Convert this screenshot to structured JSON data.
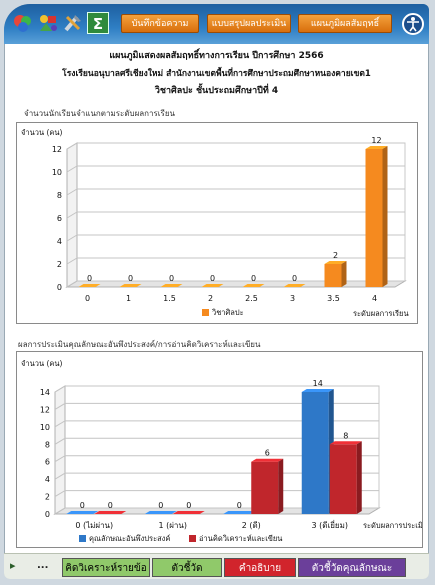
{
  "toolbar": {
    "buttons": [
      "บันทึกข้อความ",
      "แบบสรุปผลประเมิน",
      "แผนภูมิผลสัมฤทธิ์"
    ]
  },
  "header": {
    "line1": "แผนภูมิแสดงผลสัมฤทธิ์ทางการเรียน ปีการศึกษา 2566",
    "line2": "โรงเรียนอนุบาลศรีเชียงใหม่ สำนักงานเขตพื้นที่การศึกษาประถมศึกษาหนองคายเขต1",
    "line3": "วิชาศิลปะ ชั้นประถมศึกษาปีที่ 4"
  },
  "chart1_section_title": "จำนวนนักเรียนจำแนกตามระดับผลการเรียน",
  "chart2_section_title": "ผลการประเมินคุณลักษณะอันพึงประสงค์/การอ่านคิดวิเคราะห์และเขียน",
  "chart_data": [
    {
      "type": "bar",
      "ylabel": "จำนวน (คน)",
      "xlabel": "ระดับผลการเรียน",
      "categories": [
        "0",
        "1",
        "1.5",
        "2",
        "2.5",
        "3",
        "3.5",
        "4"
      ],
      "series": [
        {
          "name": "วิชาศิลปะ",
          "values": [
            0,
            0,
            0,
            0,
            0,
            0,
            2,
            12
          ],
          "color": "#f58a1f"
        }
      ],
      "ylim": [
        0,
        12
      ],
      "yticks": [
        0,
        2,
        4,
        6,
        8,
        10,
        12
      ],
      "grid": true,
      "legend": "bottom"
    },
    {
      "type": "bar",
      "ylabel": "จำนวน (คน)",
      "xlabel": "ระดับผลการประเมิน",
      "categories": [
        "0 (ไม่ผ่าน)",
        "1 (ผ่าน)",
        "2 (ดี)",
        "3 (ดีเยี่ยม)"
      ],
      "series": [
        {
          "name": "คุณลักษณะอันพึงประสงค์",
          "values": [
            0,
            0,
            0,
            14
          ],
          "color": "#2e78c8"
        },
        {
          "name": "อ่านคิดวิเคราะห์และเขียน",
          "values": [
            0,
            0,
            6,
            8
          ],
          "color": "#c0262c"
        }
      ],
      "ylim": [
        0,
        14
      ],
      "yticks": [
        0,
        2,
        4,
        6,
        8,
        10,
        12,
        14
      ],
      "grid": true,
      "legend": "bottom"
    }
  ],
  "tabs": {
    "nav_arrow": "▸",
    "ellipsis": "...",
    "items": [
      {
        "label": "คิดวิเคราะห์รายข้อ",
        "style": "green"
      },
      {
        "label": "ตัวชี้วัด",
        "style": "green"
      },
      {
        "label": "คำอธิบาย",
        "style": "red"
      },
      {
        "label": "ตัวชี้วัดคุณลักษณะ",
        "style": "purple"
      }
    ]
  },
  "icons": [
    "color-palette-icon",
    "shapes-icon",
    "tools-icon",
    "sum-icon",
    "accessibility-icon"
  ]
}
